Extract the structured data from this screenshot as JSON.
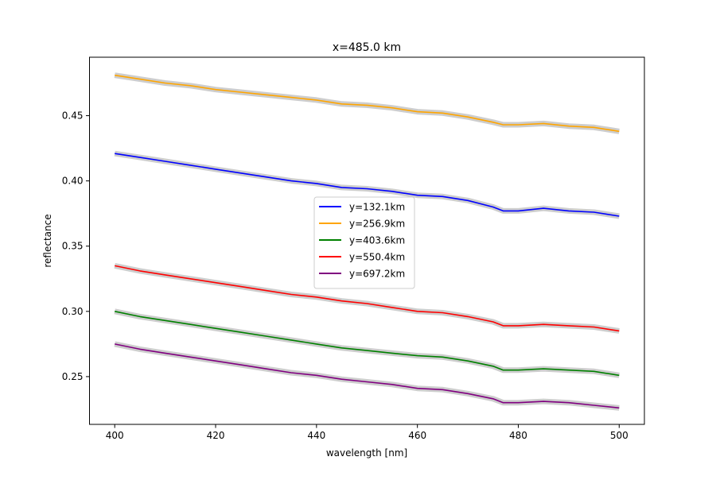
{
  "chart_data": {
    "type": "line",
    "title": "x=485.0 km",
    "xlabel": "wavelength [nm]",
    "ylabel": "reflectance",
    "xlim": [
      395,
      505
    ],
    "ylim": [
      0.2134,
      0.4948
    ],
    "xticks": [
      400,
      420,
      440,
      460,
      480,
      500
    ],
    "xtick_labels": [
      "400",
      "420",
      "440",
      "460",
      "480",
      "500"
    ],
    "yticks": [
      0.25,
      0.3,
      0.35,
      0.4,
      0.45
    ],
    "ytick_labels": [
      "0.25",
      "0.30",
      "0.35",
      "0.40",
      "0.45"
    ],
    "grid": false,
    "legend_position": "center",
    "band_color": "#c8c8c8",
    "x": [
      400,
      405,
      410,
      415,
      420,
      425,
      430,
      435,
      440,
      445,
      450,
      455,
      460,
      465,
      470,
      475,
      477,
      480,
      485,
      490,
      495,
      500
    ],
    "series": [
      {
        "name": "y=132.1km",
        "color": "#0000ff",
        "values": [
          0.421,
          0.418,
          0.415,
          0.412,
          0.409,
          0.406,
          0.403,
          0.4,
          0.398,
          0.395,
          0.394,
          0.392,
          0.389,
          0.388,
          0.385,
          0.38,
          0.377,
          0.377,
          0.379,
          0.377,
          0.376,
          0.373
        ]
      },
      {
        "name": "y=256.9km",
        "color": "#ffa500",
        "values": [
          0.481,
          0.478,
          0.475,
          0.473,
          0.47,
          0.468,
          0.466,
          0.464,
          0.462,
          0.459,
          0.458,
          0.456,
          0.453,
          0.452,
          0.449,
          0.445,
          0.443,
          0.443,
          0.444,
          0.442,
          0.441,
          0.438
        ]
      },
      {
        "name": "y=403.6km",
        "color": "#008000",
        "values": [
          0.3,
          0.296,
          0.293,
          0.29,
          0.287,
          0.284,
          0.281,
          0.278,
          0.275,
          0.272,
          0.27,
          0.268,
          0.266,
          0.265,
          0.262,
          0.258,
          0.255,
          0.255,
          0.256,
          0.255,
          0.254,
          0.251
        ]
      },
      {
        "name": "y=550.4km",
        "color": "#ff0000",
        "values": [
          0.335,
          0.331,
          0.328,
          0.325,
          0.322,
          0.319,
          0.316,
          0.313,
          0.311,
          0.308,
          0.306,
          0.303,
          0.3,
          0.299,
          0.296,
          0.292,
          0.289,
          0.289,
          0.29,
          0.289,
          0.288,
          0.285
        ]
      },
      {
        "name": "y=697.2km",
        "color": "#800080",
        "values": [
          0.275,
          0.271,
          0.268,
          0.265,
          0.262,
          0.259,
          0.256,
          0.253,
          0.251,
          0.248,
          0.246,
          0.244,
          0.241,
          0.24,
          0.237,
          0.233,
          0.23,
          0.23,
          0.231,
          0.23,
          0.228,
          0.226
        ]
      }
    ]
  }
}
